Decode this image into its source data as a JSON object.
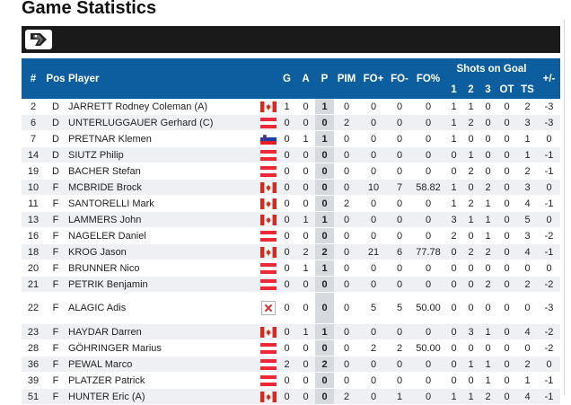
{
  "page": {
    "title": "Game Statistics"
  },
  "colors": {
    "header_bg": "#0c5e9e",
    "toolbar_bg": "#1a1a1a",
    "points_col_bg": "#d6d9de",
    "row_alt_bg": "#eef0f3"
  },
  "header": {
    "num": "#",
    "pos": "Pos",
    "player": "Player",
    "g": "G",
    "a": "A",
    "p": "P",
    "pim": "PIM",
    "fo_plus": "FO+",
    "fo_minus": "FO-",
    "fo_pct": "FO%",
    "shots_group": "Shots on Goal",
    "s1": "1",
    "s2": "2",
    "s3": "3",
    "ot": "OT",
    "ts": "TS",
    "plus_minus": "+/-"
  },
  "rows": [
    {
      "num": "2",
      "pos": "D",
      "name": "JARRETT Rodney Coleman (A)",
      "flag": "CAN",
      "g": "1",
      "a": "0",
      "p": "1",
      "pim": "0",
      "fo_plus": "0",
      "fo_minus": "0",
      "fo_pct": "0",
      "s1": "1",
      "s2": "1",
      "s3": "0",
      "ot": "0",
      "ts": "2",
      "pm": "-3"
    },
    {
      "num": "6",
      "pos": "D",
      "name": "UNTERLUGGAUER Gerhard (C)",
      "flag": "AUT",
      "g": "0",
      "a": "0",
      "p": "0",
      "pim": "2",
      "fo_plus": "0",
      "fo_minus": "0",
      "fo_pct": "0",
      "s1": "1",
      "s2": "2",
      "s3": "0",
      "ot": "0",
      "ts": "3",
      "pm": "-3"
    },
    {
      "num": "7",
      "pos": "D",
      "name": "PRETNAR Klemen",
      "flag": "SLO",
      "g": "0",
      "a": "1",
      "p": "1",
      "pim": "0",
      "fo_plus": "0",
      "fo_minus": "0",
      "fo_pct": "0",
      "s1": "1",
      "s2": "0",
      "s3": "0",
      "ot": "0",
      "ts": "1",
      "pm": "0"
    },
    {
      "num": "14",
      "pos": "D",
      "name": "SIUTZ Philip",
      "flag": "AUT",
      "g": "0",
      "a": "0",
      "p": "0",
      "pim": "0",
      "fo_plus": "0",
      "fo_minus": "0",
      "fo_pct": "0",
      "s1": "0",
      "s2": "1",
      "s3": "0",
      "ot": "0",
      "ts": "1",
      "pm": "-1"
    },
    {
      "num": "19",
      "pos": "D",
      "name": "BACHER Stefan",
      "flag": "AUT",
      "g": "0",
      "a": "0",
      "p": "0",
      "pim": "0",
      "fo_plus": "0",
      "fo_minus": "0",
      "fo_pct": "0",
      "s1": "0",
      "s2": "2",
      "s3": "0",
      "ot": "0",
      "ts": "2",
      "pm": "-1"
    },
    {
      "num": "10",
      "pos": "F",
      "name": "MCBRIDE Brock",
      "flag": "CAN",
      "g": "0",
      "a": "0",
      "p": "0",
      "pim": "0",
      "fo_plus": "10",
      "fo_minus": "7",
      "fo_pct": "58.82",
      "s1": "1",
      "s2": "0",
      "s3": "2",
      "ot": "0",
      "ts": "3",
      "pm": "0"
    },
    {
      "num": "11",
      "pos": "F",
      "name": "SANTORELLI Mark",
      "flag": "CAN",
      "g": "0",
      "a": "0",
      "p": "0",
      "pim": "2",
      "fo_plus": "0",
      "fo_minus": "0",
      "fo_pct": "0",
      "s1": "1",
      "s2": "2",
      "s3": "1",
      "ot": "0",
      "ts": "4",
      "pm": "-1"
    },
    {
      "num": "13",
      "pos": "F",
      "name": "LAMMERS John",
      "flag": "CAN",
      "g": "0",
      "a": "1",
      "p": "1",
      "pim": "0",
      "fo_plus": "0",
      "fo_minus": "0",
      "fo_pct": "0",
      "s1": "3",
      "s2": "1",
      "s3": "1",
      "ot": "0",
      "ts": "5",
      "pm": "0"
    },
    {
      "num": "16",
      "pos": "F",
      "name": "NAGELER Daniel",
      "flag": "AUT",
      "g": "0",
      "a": "0",
      "p": "0",
      "pim": "0",
      "fo_plus": "0",
      "fo_minus": "0",
      "fo_pct": "0",
      "s1": "2",
      "s2": "0",
      "s3": "1",
      "ot": "0",
      "ts": "3",
      "pm": "-2"
    },
    {
      "num": "18",
      "pos": "F",
      "name": "KROG Jason",
      "flag": "CAN",
      "g": "0",
      "a": "2",
      "p": "2",
      "pim": "0",
      "fo_plus": "21",
      "fo_minus": "6",
      "fo_pct": "77.78",
      "s1": "0",
      "s2": "2",
      "s3": "2",
      "ot": "0",
      "ts": "4",
      "pm": "-1"
    },
    {
      "num": "20",
      "pos": "F",
      "name": "BRUNNER Nico",
      "flag": "AUT",
      "g": "0",
      "a": "1",
      "p": "1",
      "pim": "0",
      "fo_plus": "0",
      "fo_minus": "0",
      "fo_pct": "0",
      "s1": "0",
      "s2": "0",
      "s3": "0",
      "ot": "0",
      "ts": "0",
      "pm": "0"
    },
    {
      "num": "21",
      "pos": "F",
      "name": "PETRIK Benjamin",
      "flag": "AUT",
      "g": "0",
      "a": "0",
      "p": "0",
      "pim": "0",
      "fo_plus": "0",
      "fo_minus": "0",
      "fo_pct": "0",
      "s1": "0",
      "s2": "0",
      "s3": "2",
      "ot": "0",
      "ts": "2",
      "pm": "-2"
    },
    {
      "num": "22",
      "pos": "F",
      "name": "ALAGIC Adis",
      "flag": "BROKEN",
      "tall": true,
      "g": "0",
      "a": "0",
      "p": "0",
      "pim": "0",
      "fo_plus": "5",
      "fo_minus": "5",
      "fo_pct": "50.00",
      "s1": "0",
      "s2": "0",
      "s3": "0",
      "ot": "0",
      "ts": "0",
      "pm": "-3"
    },
    {
      "num": "23",
      "pos": "F",
      "name": "HAYDAR Darren",
      "flag": "CAN",
      "g": "0",
      "a": "1",
      "p": "1",
      "pim": "0",
      "fo_plus": "0",
      "fo_minus": "0",
      "fo_pct": "0",
      "s1": "0",
      "s2": "3",
      "s3": "1",
      "ot": "0",
      "ts": "4",
      "pm": "-2"
    },
    {
      "num": "28",
      "pos": "F",
      "name": "GÖHRINGER Marius",
      "flag": "AUT",
      "g": "0",
      "a": "0",
      "p": "0",
      "pim": "0",
      "fo_plus": "2",
      "fo_minus": "2",
      "fo_pct": "50.00",
      "s1": "0",
      "s2": "0",
      "s3": "0",
      "ot": "0",
      "ts": "0",
      "pm": "-2"
    },
    {
      "num": "36",
      "pos": "F",
      "name": "PEWAL Marco",
      "flag": "AUT",
      "g": "2",
      "a": "0",
      "p": "2",
      "pim": "0",
      "fo_plus": "0",
      "fo_minus": "0",
      "fo_pct": "0",
      "s1": "0",
      "s2": "1",
      "s3": "1",
      "ot": "0",
      "ts": "2",
      "pm": "0"
    },
    {
      "num": "39",
      "pos": "F",
      "name": "PLATZER Patrick",
      "flag": "AUT",
      "g": "0",
      "a": "0",
      "p": "0",
      "pim": "0",
      "fo_plus": "0",
      "fo_minus": "0",
      "fo_pct": "0",
      "s1": "0",
      "s2": "0",
      "s3": "1",
      "ot": "0",
      "ts": "1",
      "pm": "-1"
    },
    {
      "num": "51",
      "pos": "F",
      "name": "HUNTER Eric (A)",
      "flag": "CAN",
      "g": "0",
      "a": "0",
      "p": "0",
      "pim": "2",
      "fo_plus": "0",
      "fo_minus": "1",
      "fo_pct": "0",
      "s1": "1",
      "s2": "1",
      "s3": "2",
      "ot": "0",
      "ts": "4",
      "pm": "-1"
    }
  ]
}
